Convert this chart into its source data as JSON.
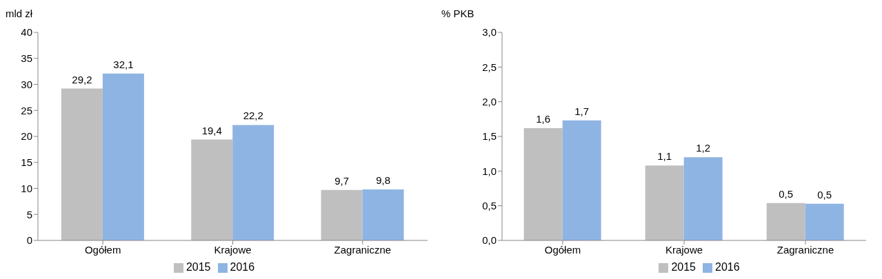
{
  "chart_data": [
    {
      "type": "bar",
      "ylabel": "mld zł",
      "categories": [
        "Ogółem",
        "Krajowe",
        "Zagraniczne"
      ],
      "series": [
        {
          "name": "2015",
          "color": "#bfbfbf",
          "values": [
            29.2,
            19.4,
            9.7
          ],
          "value_labels": [
            "29,2",
            "19,4",
            "9,7"
          ]
        },
        {
          "name": "2016",
          "color": "#8eb4e3",
          "values": [
            32.1,
            22.2,
            9.8
          ],
          "value_labels": [
            "32,1",
            "22,2",
            "9,8"
          ]
        }
      ],
      "ylim": [
        0,
        40
      ],
      "yticks": [
        0,
        5,
        10,
        15,
        20,
        25,
        30,
        35,
        40
      ],
      "grid": false,
      "legend": "bottom"
    },
    {
      "type": "bar",
      "ylabel": "% PKB",
      "categories": [
        "Ogółem",
        "Krajowe",
        "Zagraniczne"
      ],
      "series": [
        {
          "name": "2015",
          "color": "#bfbfbf",
          "values": [
            1.62,
            1.08,
            0.54
          ],
          "value_labels": [
            "1,6",
            "1,1",
            "0,5"
          ]
        },
        {
          "name": "2016",
          "color": "#8eb4e3",
          "values": [
            1.73,
            1.2,
            0.53
          ],
          "value_labels": [
            "1,7",
            "1,2",
            "0,5"
          ]
        }
      ],
      "ylim": [
        0,
        3
      ],
      "yticks": [
        {
          "value": 0,
          "label": "0,0"
        },
        {
          "value": 0.5,
          "label": "0,5"
        },
        {
          "value": 1,
          "label": "1,0"
        },
        {
          "value": 1.5,
          "label": "1,5"
        },
        {
          "value": 2,
          "label": "2,0"
        },
        {
          "value": 2.5,
          "label": "2,5"
        },
        {
          "value": 3,
          "label": "3,0"
        }
      ],
      "grid": false,
      "legend": "bottom"
    }
  ]
}
